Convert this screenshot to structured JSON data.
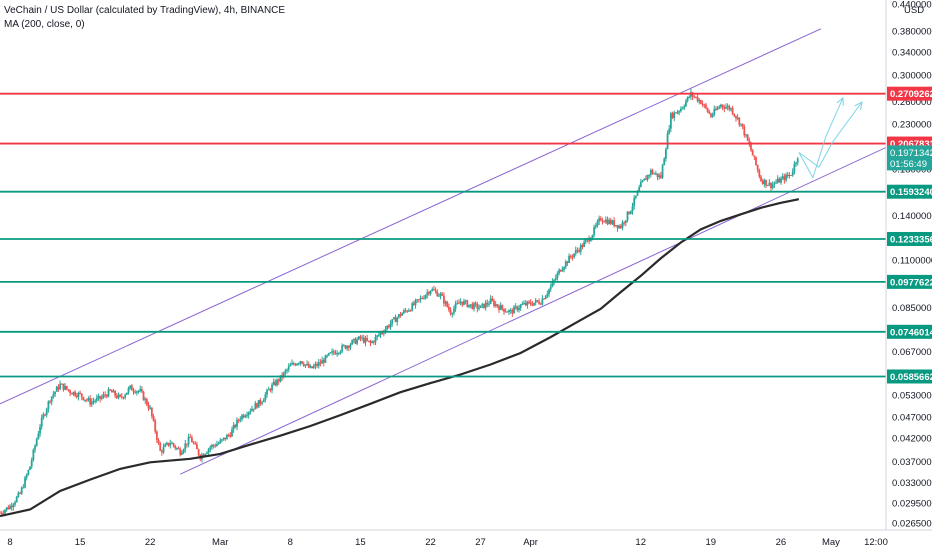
{
  "legend": {
    "title": "VeChain / US Dollar (calculated by TradingView), 4h, BINANCE",
    "indicator": "MA (200, close, 0)"
  },
  "colors": {
    "up": "#26a69a",
    "down": "#ef5350",
    "ma": "#2a2a2a",
    "channel": "#8a63d2",
    "support": "#089981",
    "resistance": "#f23645",
    "projection": "#7dd3e8",
    "last_price": "#26a69a"
  },
  "chart_data": {
    "type": "line",
    "title": "VeChain / US Dollar (calculated by TradingView), 4h, BINANCE",
    "yscale": "log",
    "ylim": [
      0.0255,
      0.45
    ],
    "y_ticks": [
      "0.44000000",
      "0.38000000",
      "0.34000000",
      "0.30000000",
      "0.26000000",
      "0.23000000",
      "0.18000000",
      "0.16000000",
      "0.14000000",
      "0.11000000",
      "0.08500000",
      "0.06700000",
      "0.05300000",
      "0.04700000",
      "0.04200000",
      "0.03700000",
      "0.03300000",
      "0.02950000",
      "0.02650000"
    ],
    "y_axis_unit": "USD",
    "x_range_days": [
      7,
      95.5
    ],
    "x_ticks": [
      {
        "label": "8",
        "day": 8
      },
      {
        "label": "15",
        "day": 15
      },
      {
        "label": "22",
        "day": 22
      },
      {
        "label": "Mar",
        "day": 29
      },
      {
        "label": "8",
        "day": 36
      },
      {
        "label": "15",
        "day": 43
      },
      {
        "label": "22",
        "day": 50
      },
      {
        "label": "27",
        "day": 55
      },
      {
        "label": "Apr",
        "day": 60
      },
      {
        "label": "12",
        "day": 71
      },
      {
        "label": "19",
        "day": 78
      },
      {
        "label": "26",
        "day": 85
      },
      {
        "label": "May",
        "day": 90
      },
      {
        "label": "12:00",
        "day": 94.5
      }
    ],
    "price_path": [
      [
        7,
        0.028
      ],
      [
        8,
        0.029
      ],
      [
        9,
        0.031
      ],
      [
        10,
        0.036
      ],
      [
        11,
        0.045
      ],
      [
        12,
        0.052
      ],
      [
        13,
        0.056
      ],
      [
        14,
        0.054
      ],
      [
        15,
        0.053
      ],
      [
        16,
        0.051
      ],
      [
        17,
        0.052
      ],
      [
        18,
        0.054
      ],
      [
        19,
        0.052
      ],
      [
        20,
        0.055
      ],
      [
        21,
        0.054
      ],
      [
        22,
        0.049
      ],
      [
        23,
        0.039
      ],
      [
        24,
        0.041
      ],
      [
        25,
        0.039
      ],
      [
        26,
        0.042
      ],
      [
        27,
        0.038
      ],
      [
        28,
        0.04
      ],
      [
        29,
        0.041
      ],
      [
        30,
        0.043
      ],
      [
        31,
        0.047
      ],
      [
        32,
        0.049
      ],
      [
        33,
        0.051
      ],
      [
        34,
        0.055
      ],
      [
        35,
        0.058
      ],
      [
        36,
        0.062
      ],
      [
        37,
        0.064
      ],
      [
        38,
        0.061
      ],
      [
        39,
        0.063
      ],
      [
        40,
        0.066
      ],
      [
        41,
        0.068
      ],
      [
        42,
        0.07
      ],
      [
        43,
        0.072
      ],
      [
        44,
        0.07
      ],
      [
        45,
        0.074
      ],
      [
        46,
        0.078
      ],
      [
        47,
        0.082
      ],
      [
        48,
        0.085
      ],
      [
        49,
        0.089
      ],
      [
        50,
        0.094
      ],
      [
        51,
        0.091
      ],
      [
        52,
        0.083
      ],
      [
        53,
        0.088
      ],
      [
        54,
        0.086
      ],
      [
        55,
        0.085
      ],
      [
        56,
        0.088
      ],
      [
        57,
        0.085
      ],
      [
        58,
        0.083
      ],
      [
        59,
        0.086
      ],
      [
        60,
        0.087
      ],
      [
        61,
        0.088
      ],
      [
        62,
        0.095
      ],
      [
        63,
        0.105
      ],
      [
        64,
        0.112
      ],
      [
        65,
        0.118
      ],
      [
        66,
        0.125
      ],
      [
        67,
        0.138
      ],
      [
        68,
        0.135
      ],
      [
        69,
        0.132
      ],
      [
        70,
        0.145
      ],
      [
        71,
        0.165
      ],
      [
        72,
        0.178
      ],
      [
        73,
        0.172
      ],
      [
        74,
        0.24
      ],
      [
        75,
        0.25
      ],
      [
        76,
        0.27
      ],
      [
        77,
        0.26
      ],
      [
        78,
        0.24
      ],
      [
        79,
        0.255
      ],
      [
        80,
        0.25
      ],
      [
        81,
        0.23
      ],
      [
        82,
        0.2
      ],
      [
        83,
        0.17
      ],
      [
        84,
        0.165
      ],
      [
        85,
        0.17
      ],
      [
        86,
        0.175
      ],
      [
        86.8,
        0.197
      ]
    ],
    "ma200_path": [
      [
        7,
        0.0275
      ],
      [
        10,
        0.0285
      ],
      [
        13,
        0.0315
      ],
      [
        16,
        0.0335
      ],
      [
        19,
        0.0355
      ],
      [
        22,
        0.0368
      ],
      [
        26,
        0.0375
      ],
      [
        29,
        0.0385
      ],
      [
        32,
        0.0405
      ],
      [
        35,
        0.0425
      ],
      [
        38,
        0.0448
      ],
      [
        41,
        0.0475
      ],
      [
        44,
        0.0505
      ],
      [
        47,
        0.0538
      ],
      [
        50,
        0.0565
      ],
      [
        53,
        0.0592
      ],
      [
        56,
        0.0625
      ],
      [
        59,
        0.0665
      ],
      [
        62,
        0.0725
      ],
      [
        65,
        0.0795
      ],
      [
        67,
        0.0845
      ],
      [
        69,
        0.0925
      ],
      [
        71,
        0.101
      ],
      [
        73,
        0.111
      ],
      [
        75,
        0.121
      ],
      [
        77,
        0.13
      ],
      [
        79,
        0.136
      ],
      [
        81,
        0.141
      ],
      [
        83,
        0.146
      ],
      [
        85,
        0.15
      ],
      [
        86.8,
        0.153
      ]
    ],
    "channel_upper": [
      [
        7,
        0.0505
      ],
      [
        89,
        0.385
      ]
    ],
    "channel_lower": [
      [
        25,
        0.0345
      ],
      [
        96,
        0.205
      ]
    ],
    "horizontal_levels": [
      {
        "price": 0.27092628,
        "label": "0.27092628",
        "kind": "resistance"
      },
      {
        "price": 0.2067831,
        "label": "0.20678310",
        "kind": "resistance"
      },
      {
        "price": 0.15932409,
        "label": "0.15932409",
        "kind": "support"
      },
      {
        "price": 0.12333563,
        "label": "0.12333563",
        "kind": "support"
      },
      {
        "price": 0.09776229,
        "label": "0.09776229",
        "kind": "support"
      },
      {
        "price": 0.07460144,
        "label": "0.07460144",
        "kind": "support"
      },
      {
        "price": 0.05856628,
        "label": "0.05856628",
        "kind": "support"
      }
    ],
    "projections": [
      [
        [
          86.8,
          0.197
        ],
        [
          88.2,
          0.172
        ],
        [
          89.5,
          0.215
        ],
        [
          91.2,
          0.265
        ]
      ],
      [
        [
          86.8,
          0.197
        ],
        [
          88.8,
          0.182
        ],
        [
          90.2,
          0.209
        ],
        [
          93.1,
          0.259
        ]
      ]
    ],
    "last_price": {
      "value": 0.19713421,
      "label": "0.19713421",
      "countdown": "01:56:49"
    }
  }
}
